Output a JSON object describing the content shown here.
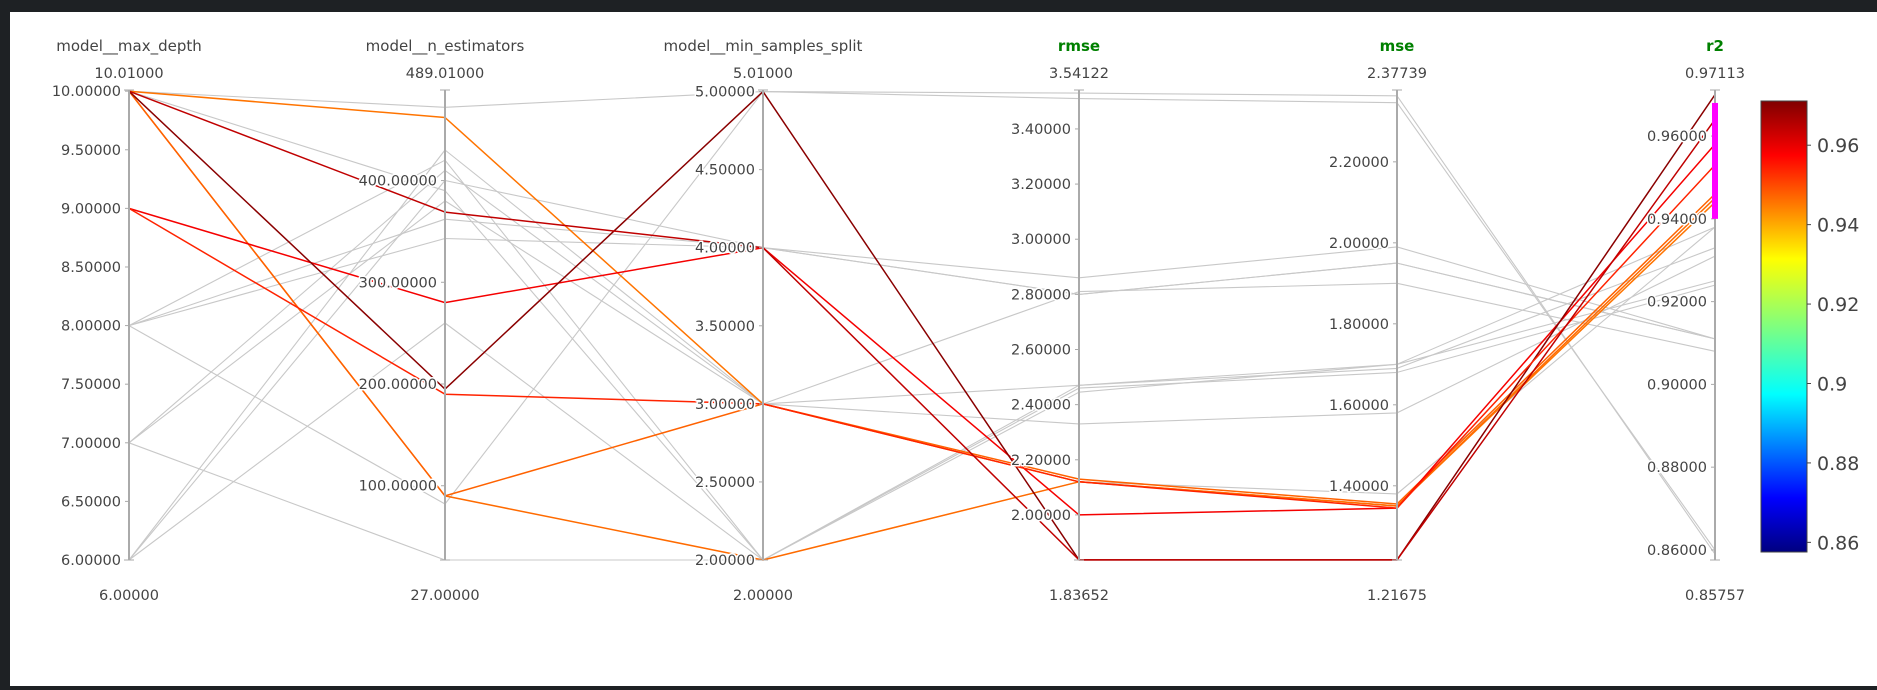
{
  "chart_data": {
    "type": "parallel_coordinates",
    "title": "",
    "dimensions": [
      {
        "key": "max_depth",
        "label": "model__max_depth",
        "metric": false,
        "range_max": "10.01000",
        "range_min": "6.00000",
        "range": [
          6.0,
          10.01
        ],
        "ticks": [
          10.0,
          9.5,
          9.0,
          8.5,
          8.0,
          7.5,
          7.0,
          6.5,
          6.0
        ],
        "tick_labels": [
          "10.00000",
          "9.50000",
          "9.00000",
          "8.50000",
          "8.00000",
          "7.50000",
          "7.00000",
          "6.50000",
          "6.00000"
        ]
      },
      {
        "key": "n_estimators",
        "label": "model__n_estimators",
        "metric": false,
        "range_max": "489.01000",
        "range_min": "27.00000",
        "range": [
          27.0,
          489.01
        ],
        "ticks": [
          400,
          300,
          200,
          100
        ],
        "tick_labels": [
          "400.00000",
          "300.00000",
          "200.00000",
          "100.00000"
        ]
      },
      {
        "key": "min_samples_split",
        "label": "model__min_samples_split",
        "metric": false,
        "range_max": "5.01000",
        "range_min": "2.00000",
        "range": [
          2.0,
          5.01
        ],
        "ticks": [
          5.0,
          4.5,
          4.0,
          3.5,
          3.0,
          2.5,
          2.0
        ],
        "tick_labels": [
          "5.00000",
          "4.50000",
          "4.00000",
          "3.50000",
          "3.00000",
          "2.50000",
          "2.00000"
        ]
      },
      {
        "key": "rmse",
        "label": "rmse",
        "metric": true,
        "range_max": "3.54122",
        "range_min": "1.83652",
        "range": [
          1.83652,
          3.54122
        ],
        "ticks": [
          3.4,
          3.2,
          3.0,
          2.8,
          2.6,
          2.4,
          2.2,
          2.0
        ],
        "tick_labels": [
          "3.40000",
          "3.20000",
          "3.00000",
          "2.80000",
          "2.60000",
          "2.40000",
          "2.20000",
          "2.00000"
        ]
      },
      {
        "key": "mse",
        "label": "mse",
        "metric": true,
        "range_max": "2.37739",
        "range_min": "1.21675",
        "range": [
          1.21675,
          2.37739
        ],
        "ticks": [
          2.2,
          2.0,
          1.8,
          1.6,
          1.4
        ],
        "tick_labels": [
          "2.20000",
          "2.00000",
          "1.80000",
          "1.60000",
          "1.40000"
        ]
      },
      {
        "key": "r2",
        "label": "r2",
        "metric": true,
        "range_max": "0.97113",
        "range_min": "0.85757",
        "range": [
          0.85757,
          0.97113
        ],
        "ticks": [
          0.96,
          0.94,
          0.92,
          0.9,
          0.88,
          0.86
        ],
        "tick_labels": [
          "0.96000",
          "0.94000",
          "0.92000",
          "0.90000",
          "0.88000",
          "0.86000"
        ],
        "constraint_range": [
          0.94,
          0.968
        ]
      }
    ],
    "lines": [
      {
        "values": [
          10,
          472,
          5,
          3.53,
          2.363,
          0.859
        ],
        "highlighted": false
      },
      {
        "values": [
          8,
          82,
          5,
          3.51,
          2.346,
          0.86
        ],
        "highlighted": false
      },
      {
        "values": [
          6,
          400,
          4,
          2.86,
          1.99,
          0.911
        ],
        "highlighted": false
      },
      {
        "values": [
          8,
          343,
          4,
          2.8,
          1.95,
          0.911
        ],
        "highlighted": false
      },
      {
        "values": [
          8,
          362,
          4,
          2.8,
          1.95,
          0.911
        ],
        "highlighted": false
      },
      {
        "values": [
          7,
          410,
          3,
          2.81,
          1.9,
          0.908
        ],
        "highlighted": false
      },
      {
        "values": [
          6,
          430,
          3,
          2.33,
          1.58,
          0.931
        ],
        "highlighted": false
      },
      {
        "values": [
          7,
          27,
          2,
          2.47,
          1.69,
          0.933
        ],
        "highlighted": false
      },
      {
        "values": [
          8,
          420,
          2,
          2.46,
          1.68,
          0.924
        ],
        "highlighted": false
      },
      {
        "values": [
          6,
          260,
          2,
          2.445,
          1.7,
          0.925
        ],
        "highlighted": false
      },
      {
        "values": [
          7,
          380,
          3,
          2.47,
          1.7,
          0.938
        ],
        "highlighted": false
      },
      {
        "values": [
          10,
          390,
          2,
          2.12,
          1.38,
          0.938
        ],
        "highlighted": false
      },
      {
        "values": [
          10,
          462,
          3,
          2.12,
          1.35,
          0.944
        ],
        "color_value": 0.944,
        "highlighted": true
      },
      {
        "values": [
          10,
          90,
          2,
          2.12,
          1.35,
          0.945
        ],
        "color_value": 0.945,
        "highlighted": true
      },
      {
        "values": [
          10,
          90,
          3,
          2.13,
          1.355,
          0.946
        ],
        "color_value": 0.946,
        "highlighted": true
      },
      {
        "values": [
          9,
          280,
          4,
          2.0,
          1.345,
          0.958
        ],
        "color_value": 0.958,
        "highlighted": true
      },
      {
        "values": [
          10,
          195,
          5,
          1.837,
          1.217,
          0.97
        ],
        "color_value": 0.97,
        "highlighted": true
      },
      {
        "values": [
          9,
          190,
          3,
          2.12,
          1.345,
          0.953
        ],
        "color_value": 0.953,
        "highlighted": true
      },
      {
        "values": [
          10,
          369,
          4,
          1.837,
          1.217,
          0.964
        ],
        "color_value": 0.964,
        "highlighted": true
      }
    ],
    "colorbar": {
      "colorscale": "jet",
      "cmin": 0.85757,
      "cmax": 0.97113,
      "ticks": [
        0.96,
        0.94,
        0.92,
        0.9,
        0.88,
        0.86
      ],
      "tick_labels": [
        "0.96",
        "0.94",
        "0.92",
        "0.9",
        "0.88",
        "0.86"
      ]
    },
    "colors": {
      "unselected_line": "#c8c8c8",
      "selected_gray": "#8a8a8a",
      "axis": "#aaaaaa",
      "constraint_bar": "#ff00ff",
      "metric_title": "#008000",
      "background": "#ffffff",
      "frame": "#1e2124"
    }
  }
}
